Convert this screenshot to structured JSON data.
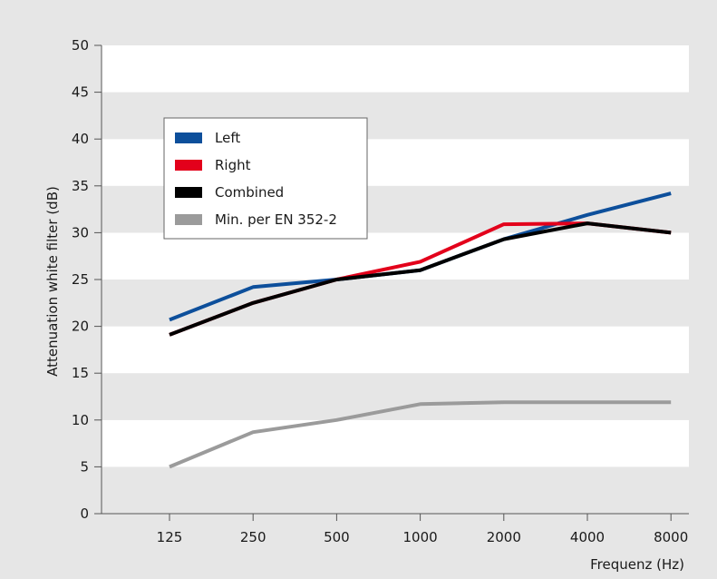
{
  "chart_data": {
    "type": "line",
    "title": "",
    "xlabel": "Frequenz (Hz)",
    "ylabel": "Attenuation white filter (dB)",
    "categories": [
      "125",
      "250",
      "500",
      "1000",
      "2000",
      "4000",
      "8000"
    ],
    "ylim": [
      0,
      50
    ],
    "yticks": [
      0,
      5,
      10,
      15,
      20,
      25,
      30,
      35,
      40,
      45,
      50
    ],
    "grid": "alternating horizontal bands",
    "legend_position": "top-left",
    "series": [
      {
        "name": "Left",
        "color": "#0d4f9b",
        "values": [
          20.7,
          24.2,
          25.0,
          26.0,
          29.3,
          31.9,
          34.2
        ]
      },
      {
        "name": "Right",
        "color": "#e3001b",
        "values": [
          19.1,
          22.5,
          25.0,
          26.9,
          30.9,
          31.0,
          30.0
        ]
      },
      {
        "name": "Combined",
        "color": "#000000",
        "values": [
          19.1,
          22.5,
          25.0,
          26.0,
          29.3,
          31.0,
          30.0
        ]
      },
      {
        "name": "Min. per EN 352-2",
        "color": "#9b9b9b",
        "values": [
          5.0,
          8.7,
          10.0,
          11.7,
          11.9,
          11.9,
          11.9
        ]
      }
    ]
  }
}
